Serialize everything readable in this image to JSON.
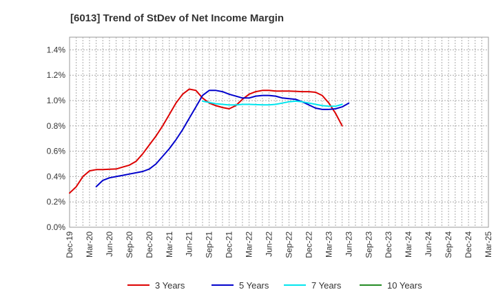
{
  "chart_data": {
    "type": "line",
    "title": "[6013]  Trend of StDev of Net Income Margin",
    "xlabel": "",
    "ylabel": "",
    "ylim": [
      0,
      1.5
    ],
    "yticks": [
      "0.0%",
      "0.2%",
      "0.4%",
      "0.6%",
      "0.8%",
      "1.0%",
      "1.2%",
      "1.4%"
    ],
    "ytick_values": [
      0,
      0.2,
      0.4,
      0.6,
      0.8,
      1.0,
      1.2,
      1.4
    ],
    "xticks": [
      "Dec-19",
      "Mar-20",
      "Jun-20",
      "Sep-20",
      "Dec-20",
      "Mar-21",
      "Jun-21",
      "Sep-21",
      "Dec-21",
      "Mar-22",
      "Jun-22",
      "Sep-22",
      "Dec-22",
      "Mar-23",
      "Jun-23",
      "Sep-23",
      "Dec-23",
      "Mar-24",
      "Jun-24",
      "Sep-24",
      "Dec-24",
      "Mar-25"
    ],
    "grid": true,
    "legend_position": "bottom",
    "series": [
      {
        "name": "3 Years",
        "color": "#dd0000",
        "start_index": 0,
        "values": [
          0.27,
          0.32,
          0.4,
          0.445,
          0.455,
          0.455,
          0.458,
          0.46,
          0.475,
          0.49,
          0.52,
          0.58,
          0.65,
          0.72,
          0.8,
          0.89,
          0.98,
          1.05,
          1.09,
          1.08,
          1.02,
          0.98,
          0.96,
          0.945,
          0.935,
          0.96,
          1.01,
          1.05,
          1.07,
          1.08,
          1.08,
          1.075,
          1.075,
          1.075,
          1.073,
          1.07,
          1.07,
          1.065,
          1.04,
          0.98,
          0.9,
          0.8
        ]
      },
      {
        "name": "5 Years",
        "color": "#0000cc",
        "start_index": 4,
        "values": [
          0.32,
          0.37,
          0.39,
          0.4,
          0.41,
          0.42,
          0.43,
          0.44,
          0.46,
          0.5,
          0.56,
          0.62,
          0.69,
          0.77,
          0.86,
          0.95,
          1.04,
          1.08,
          1.08,
          1.07,
          1.05,
          1.035,
          1.02,
          1.02,
          1.035,
          1.04,
          1.04,
          1.035,
          1.02,
          1.015,
          1.01,
          0.99,
          0.965,
          0.94,
          0.93,
          0.93,
          0.935,
          0.95,
          0.98
        ]
      },
      {
        "name": "7 Years",
        "color": "#00e5ee",
        "start_index": 20,
        "values": [
          0.995,
          0.985,
          0.975,
          0.97,
          0.965,
          0.965,
          0.97,
          0.97,
          0.968,
          0.966,
          0.966,
          0.97,
          0.98,
          0.99,
          0.995,
          0.99,
          0.98,
          0.97,
          0.96,
          0.955,
          0.955,
          0.97
        ]
      },
      {
        "name": "10 Years",
        "color": "#228b22",
        "start_index": 0,
        "values": []
      }
    ]
  }
}
